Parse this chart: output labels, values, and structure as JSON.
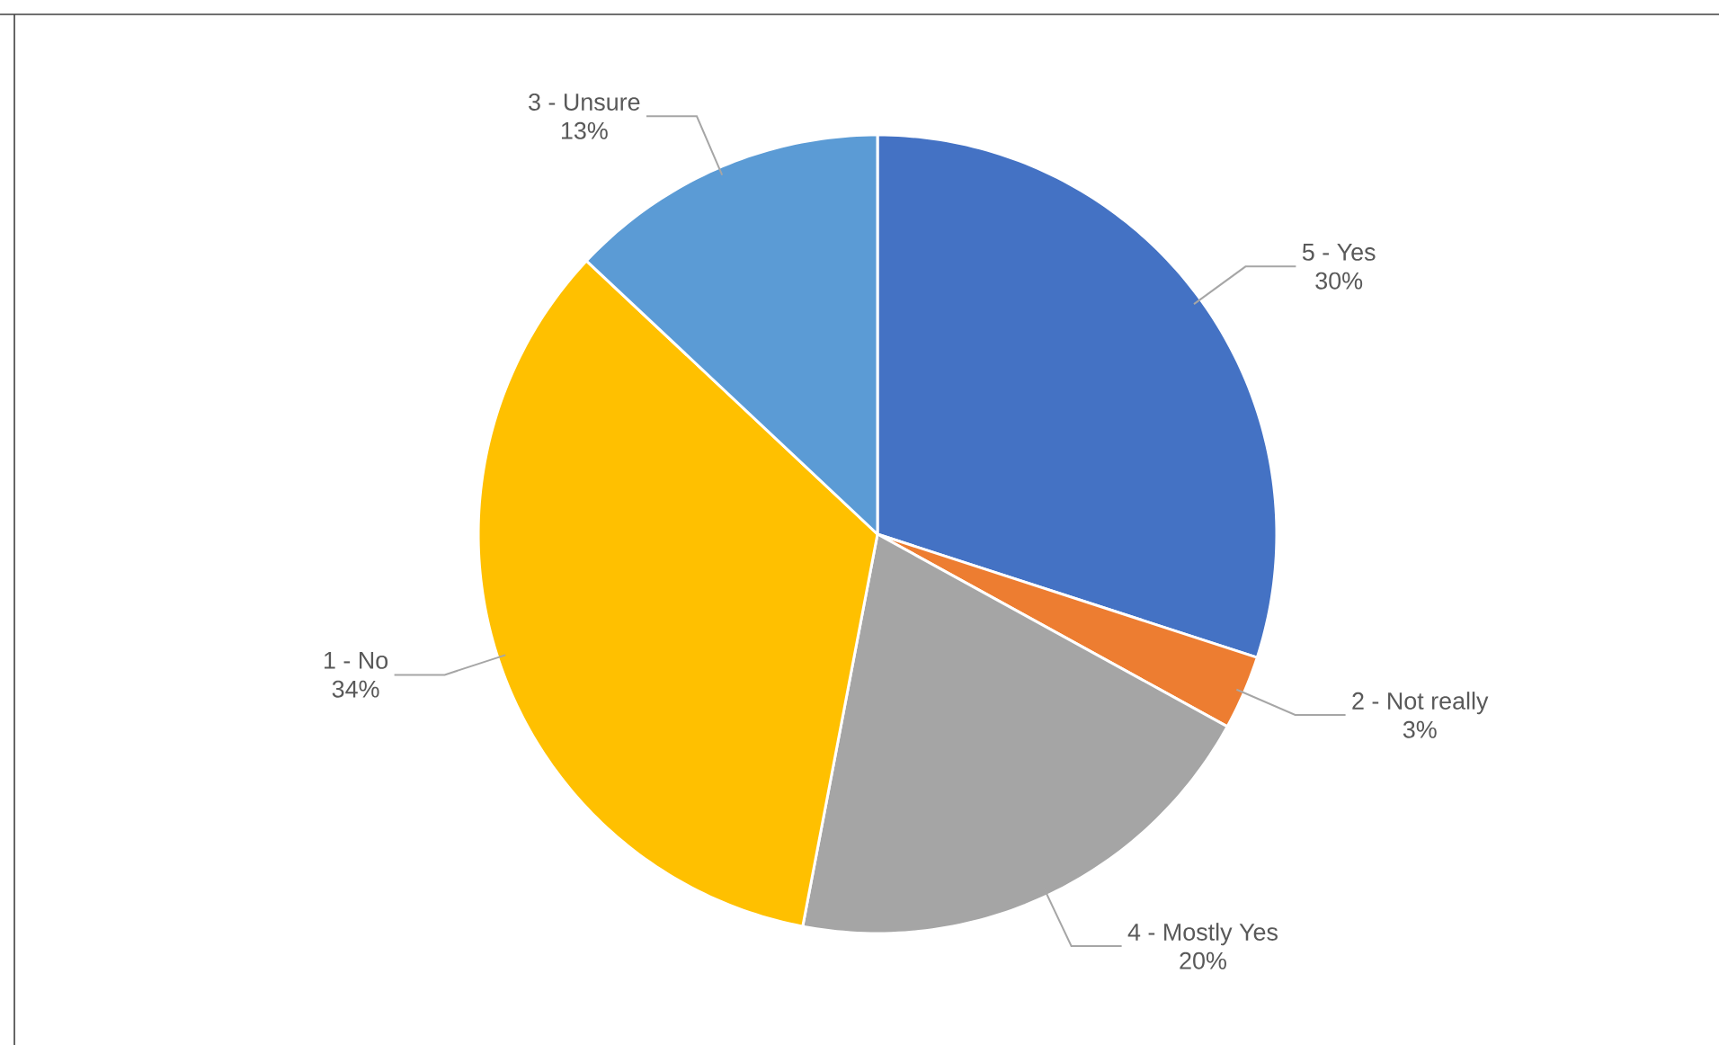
{
  "chart_data": {
    "type": "pie",
    "categories": [
      "5 - Yes",
      "2 - Not really",
      "4 - Mostly Yes",
      "1 - No",
      "3 - Unsure"
    ],
    "values": [
      30,
      3,
      20,
      34,
      13
    ],
    "value_labels": [
      "30%",
      "3%",
      "20%",
      "34%",
      "13%"
    ],
    "colors": [
      "#4472c4",
      "#ed7d31",
      "#a5a5a5",
      "#ffc000",
      "#5b9bd5"
    ]
  }
}
